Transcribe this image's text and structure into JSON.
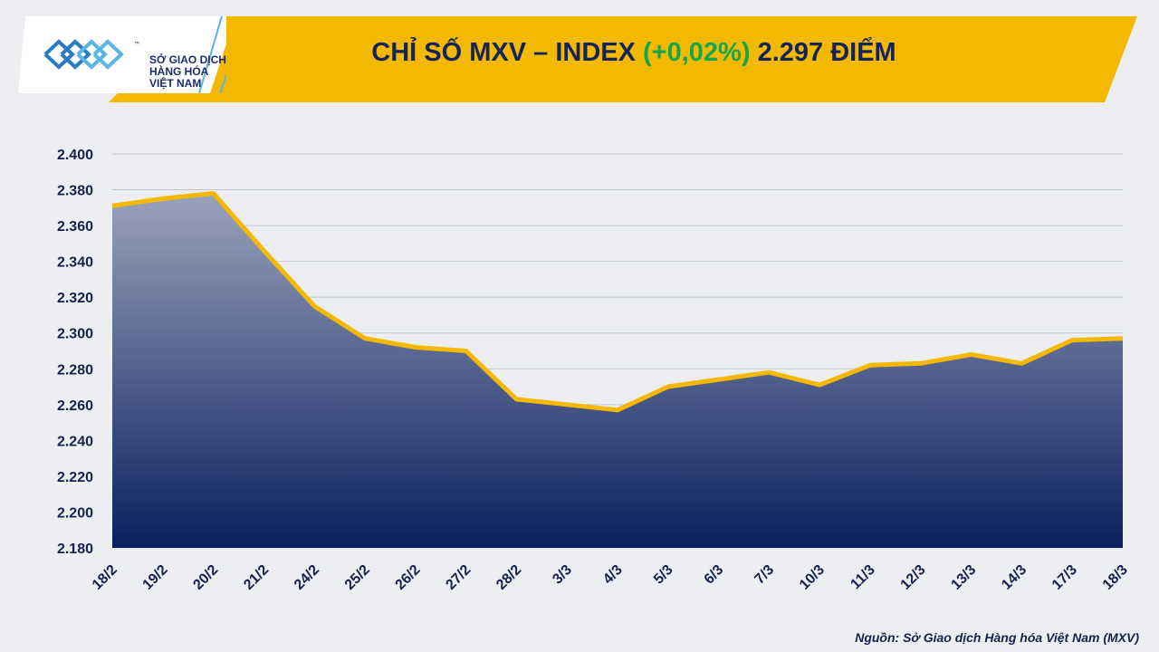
{
  "logo": {
    "line1": "SỞ GIAO DỊCH",
    "line2": "HÀNG HÓA",
    "line3": "VIỆT NAM",
    "mark": "™"
  },
  "header": {
    "title_main": "CHỈ SỐ MXV – INDEX",
    "title_change": "(+0,02%)",
    "title_value": "2.297 ĐIỂM",
    "banner_color": "#f3b800",
    "change_color": "#19a64a",
    "title_color": "#152458"
  },
  "chart_data": {
    "type": "area",
    "title": "CHỈ SỐ MXV – INDEX (+0,02%) 2.297 ĐIỂM",
    "categories": [
      "18/2",
      "19/2",
      "20/2",
      "21/2",
      "24/2",
      "25/2",
      "26/2",
      "27/2",
      "28/2",
      "3/3",
      "4/3",
      "5/3",
      "6/3",
      "7/3",
      "10/3",
      "11/3",
      "12/3",
      "13/3",
      "14/3",
      "17/3",
      "18/3"
    ],
    "series": [
      {
        "values": [
          2371,
          2375,
          2378,
          2346,
          2315,
          2297,
          2292,
          2290,
          2263,
          2260,
          2257,
          2270,
          2274,
          2278,
          2271,
          2282,
          2283,
          2288,
          2283,
          2296,
          2297
        ],
        "line_color": "#f3b800",
        "fill_top_color": "#9aa3bc",
        "fill_bottom_color": "#0b1f5e"
      }
    ],
    "ylim": [
      2180,
      2400
    ],
    "yticks": [
      2180,
      2200,
      2220,
      2240,
      2260,
      2280,
      2300,
      2320,
      2340,
      2360,
      2380,
      2400
    ],
    "ytick_labels": [
      "2.180",
      "2.200",
      "2.220",
      "2.240",
      "2.260",
      "2.280",
      "2.300",
      "2.320",
      "2.340",
      "2.360",
      "2.380",
      "2.400"
    ],
    "grid": true,
    "legend": "none",
    "xlabel": "",
    "ylabel": ""
  },
  "footer": {
    "source": "Nguồn: Sở Giao dịch Hàng hóa Việt Nam (MXV)"
  }
}
